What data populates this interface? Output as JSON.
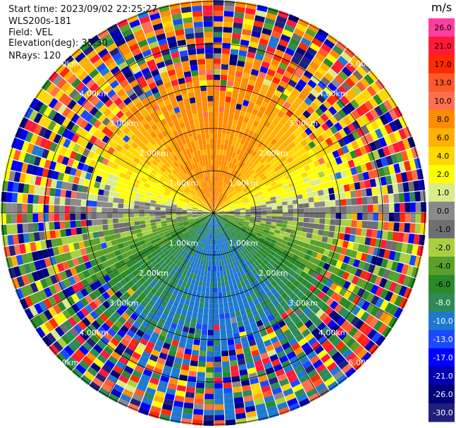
{
  "header": {
    "start_time": "Start time: 2023/09/02 22:25:27",
    "instrument": "WLS200s-181",
    "field": "Field: VEL",
    "elevation": "Elevation(deg): 35.30",
    "nrays": "NRays: 120"
  },
  "colorbar": {
    "unit": "m/s",
    "ticks": [
      "26.0",
      "21.0",
      "17.0",
      "13.0",
      "10.0",
      "8.0",
      "6.0",
      "4.0",
      "2.0",
      "1.0",
      "0.0",
      "-1.0",
      "-2.0",
      "-4.0",
      "-6.0",
      "-8.0",
      "-10.0",
      "-13.0",
      "-17.0",
      "-21.0",
      "-26.0",
      "-30.0"
    ],
    "colors": [
      "#ff3fa0",
      "#ff1a3a",
      "#ff2a00",
      "#ff5a2a",
      "#ff7050",
      "#ff8c00",
      "#ffb000",
      "#ffd800",
      "#ffff00",
      "#d9ec8a",
      "#8a8a8a",
      "#6e6e6e",
      "#a8d040",
      "#5aa02a",
      "#2a8a2a",
      "#2e8b57",
      "#1e78d0",
      "#1a4aff",
      "#0000ff",
      "#0000b0",
      "#00007a",
      "#20207a"
    ]
  },
  "chart_data": {
    "type": "heatmap",
    "projection": "polar PPI",
    "field": "VEL",
    "unit": "m/s",
    "nrays": 120,
    "range_rings_km": [
      1,
      2,
      3,
      4,
      5
    ],
    "ring_labels": [
      "1.00km",
      "2.00km",
      "3.00km",
      "4.00km",
      "5.00km"
    ],
    "max_range_km": 5.0,
    "color_scale": [
      -30,
      -26,
      -21,
      -17,
      -13,
      -10,
      -8,
      -6,
      -4,
      -2,
      -1,
      0,
      1,
      2,
      4,
      6,
      8,
      10,
      13,
      17,
      21,
      26
    ]
  }
}
